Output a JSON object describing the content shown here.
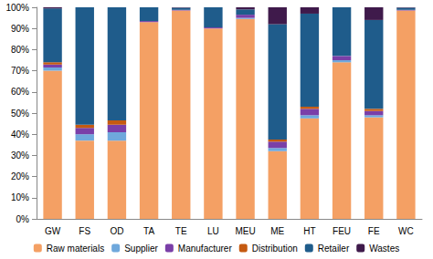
{
  "chart_data": {
    "type": "bar",
    "stacked": true,
    "grid": false,
    "legend": "bottom",
    "categories": [
      "GW",
      "FS",
      "OD",
      "TA",
      "TE",
      "LU",
      "MEU",
      "ME",
      "HT",
      "FEU",
      "FE",
      "WC"
    ],
    "ylim": [
      0,
      100
    ],
    "yticks": [
      {
        "value": 0,
        "label": "0%"
      },
      {
        "value": 10,
        "label": "10%"
      },
      {
        "value": 20,
        "label": "20%"
      },
      {
        "value": 30,
        "label": "30%"
      },
      {
        "value": 40,
        "label": "40%"
      },
      {
        "value": 50,
        "label": "50%"
      },
      {
        "value": 60,
        "label": "60%"
      },
      {
        "value": 70,
        "label": "70%"
      },
      {
        "value": 80,
        "label": "80%"
      },
      {
        "value": 90,
        "label": "90%"
      },
      {
        "value": 100,
        "label": "100%"
      }
    ],
    "series": [
      {
        "name": "Raw materials",
        "color": "#f4a064",
        "values": [
          70,
          37,
          37,
          93,
          98.5,
          90,
          94.5,
          32,
          47.5,
          74,
          48,
          98.5
        ]
      },
      {
        "name": "Supplier",
        "color": "#6fa8dc",
        "values": [
          1.5,
          3,
          4,
          0,
          0,
          0,
          0.5,
          1.5,
          1.5,
          1,
          1,
          0
        ]
      },
      {
        "name": "Manufacturer",
        "color": "#7a3fa8",
        "values": [
          1.5,
          3,
          3.5,
          0.5,
          0.3,
          0.5,
          1.5,
          3,
          3,
          2,
          2,
          0.3
        ]
      },
      {
        "name": "Distribution",
        "color": "#c55a11",
        "values": [
          1,
          1.5,
          2,
          0,
          0,
          0,
          0,
          1,
          1,
          0,
          1,
          0
        ]
      },
      {
        "name": "Retailer",
        "color": "#1f5c8b",
        "values": [
          25.5,
          55.5,
          53.5,
          6.5,
          1,
          9.5,
          2.5,
          54.5,
          44,
          23,
          42,
          1
        ]
      },
      {
        "name": "Wastes",
        "color": "#3f1a4b",
        "values": [
          0.5,
          0,
          0,
          0,
          0.2,
          0,
          1,
          8,
          3,
          0,
          6,
          0.2
        ]
      }
    ]
  }
}
